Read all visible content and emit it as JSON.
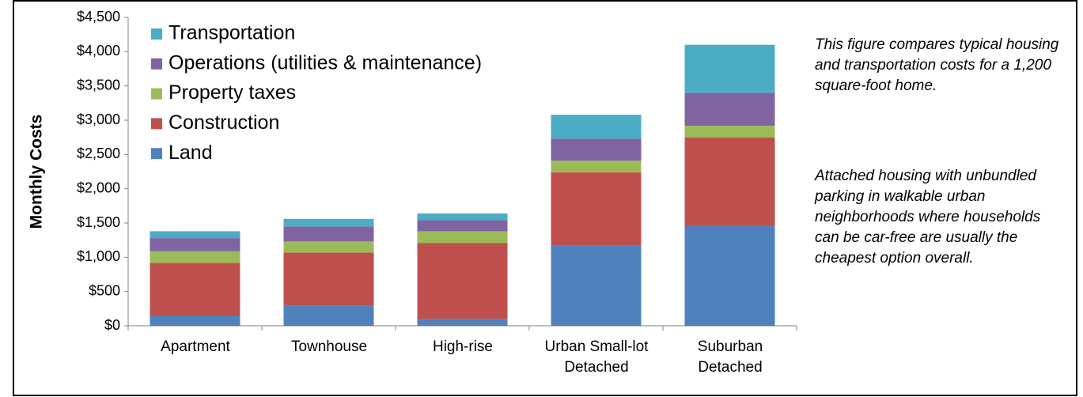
{
  "chart_data": {
    "type": "stacked_bar",
    "y_label": "Monthly Costs",
    "categories": [
      "Apartment",
      "Townhouse",
      "High-rise",
      "Urban Small-lot Detached",
      "Suburban Detached"
    ],
    "series": [
      {
        "name": "Land",
        "color": "#4f81bd",
        "values": [
          150,
          290,
          100,
          1170,
          1460
        ]
      },
      {
        "name": "Construction",
        "color": "#c0504d",
        "values": [
          770,
          780,
          1110,
          1070,
          1290
        ]
      },
      {
        "name": "Property taxes",
        "color": "#9bbb59",
        "values": [
          170,
          160,
          170,
          170,
          170
        ]
      },
      {
        "name": "Operations (utilities & maintenance)",
        "color": "#8064a2",
        "values": [
          190,
          220,
          160,
          320,
          480
        ]
      },
      {
        "name": "Transportation",
        "color": "#4bacc6",
        "values": [
          100,
          110,
          100,
          350,
          700
        ]
      }
    ],
    "ylim": [
      0,
      4500
    ],
    "yticks": [
      {
        "value": 0,
        "label": "$0"
      },
      {
        "value": 500,
        "label": "$500"
      },
      {
        "value": 1000,
        "label": "$1,000"
      },
      {
        "value": 1500,
        "label": "$1,500"
      },
      {
        "value": 2000,
        "label": "$2,000"
      },
      {
        "value": 2500,
        "label": "$2,500"
      },
      {
        "value": 3000,
        "label": "$3,000"
      },
      {
        "value": 3500,
        "label": "$3,500"
      },
      {
        "value": 4000,
        "label": "$4,000"
      },
      {
        "value": 4500,
        "label": "$4,500"
      }
    ],
    "grid": false,
    "legend": "top-left",
    "annotations": [
      "This figure compares typical housing and transportation costs for a 1,200 square-foot home.",
      "Attached housing with unbundled parking in walkable urban neighborhoods where households can be car-free are usually the cheapest option overall."
    ]
  }
}
